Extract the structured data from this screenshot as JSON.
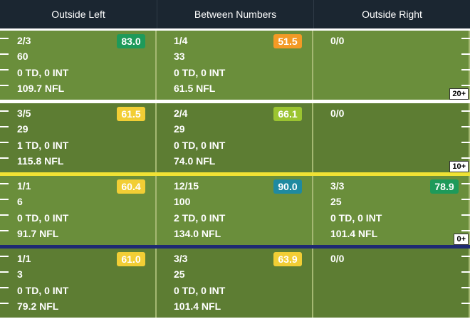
{
  "columns": [
    "Outside Left",
    "Between Numbers",
    "Outside Right"
  ],
  "colors": {
    "header_bg": "#1b2631",
    "field_light": "#6a8e3b",
    "field_dark": "#5d7d33",
    "line_white": "#ffffff",
    "line_yellow": "#f0e234",
    "line_blue": "#1e2a72",
    "badge_green": "#1e9a5a",
    "badge_orange": "#f39a25",
    "badge_yellow": "#f2ce35",
    "badge_lime": "#9bc431",
    "badge_teal": "#1f8aa0"
  },
  "rows": [
    {
      "yard_marker": "20+",
      "cells": [
        {
          "lines": [
            "2/3",
            "60",
            "0 TD, 0 INT",
            "109.7 NFL"
          ],
          "grade": "83.0",
          "grade_color": "#1e9a5a"
        },
        {
          "lines": [
            "1/4",
            "33",
            "0 TD, 0 INT",
            "61.5 NFL"
          ],
          "grade": "51.5",
          "grade_color": "#f39a25"
        },
        {
          "lines": [
            "0/0",
            "",
            "",
            ""
          ],
          "grade": "",
          "grade_color": ""
        }
      ]
    },
    {
      "yard_marker": "10+",
      "cells": [
        {
          "lines": [
            "3/5",
            "29",
            "1 TD, 0 INT",
            "115.8 NFL"
          ],
          "grade": "61.5",
          "grade_color": "#f2ce35"
        },
        {
          "lines": [
            "2/4",
            "29",
            "0 TD, 0 INT",
            "74.0 NFL"
          ],
          "grade": "66.1",
          "grade_color": "#9bc431"
        },
        {
          "lines": [
            "0/0",
            "",
            "",
            ""
          ],
          "grade": "",
          "grade_color": ""
        }
      ]
    },
    {
      "yard_marker": "0+",
      "cells": [
        {
          "lines": [
            "1/1",
            "6",
            "0 TD, 0 INT",
            "91.7 NFL"
          ],
          "grade": "60.4",
          "grade_color": "#f2ce35"
        },
        {
          "lines": [
            "12/15",
            "100",
            "2 TD, 0 INT",
            "134.0 NFL"
          ],
          "grade": "90.0",
          "grade_color": "#1f8aa0"
        },
        {
          "lines": [
            "3/3",
            "25",
            "0 TD, 0 INT",
            "101.4 NFL"
          ],
          "grade": "78.9",
          "grade_color": "#1e9a5a"
        }
      ]
    },
    {
      "yard_marker": "",
      "cells": [
        {
          "lines": [
            "1/1",
            "3",
            "0 TD, 0 INT",
            "79.2 NFL"
          ],
          "grade": "61.0",
          "grade_color": "#f2ce35"
        },
        {
          "lines": [
            "3/3",
            "25",
            "0 TD, 0 INT",
            "101.4 NFL"
          ],
          "grade": "63.9",
          "grade_color": "#f2ce35"
        },
        {
          "lines": [
            "0/0",
            "",
            "",
            ""
          ],
          "grade": "",
          "grade_color": ""
        }
      ]
    }
  ]
}
